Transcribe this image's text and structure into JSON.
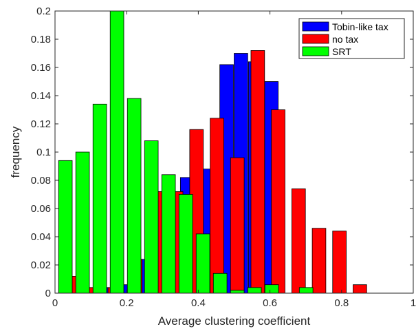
{
  "chart_data": {
    "type": "bar",
    "xlabel": "Average clustering coefficient",
    "ylabel": "frequency",
    "xlim": [
      0,
      1
    ],
    "ylim": [
      0,
      0.2
    ],
    "x_ticks": [
      "0",
      "0.2",
      "0.4",
      "0.6",
      "0.8",
      "1"
    ],
    "y_ticks": [
      "0",
      "0.02",
      "0.04",
      "0.06",
      "0.08",
      "0.1",
      "0.12",
      "0.14",
      "0.16",
      "0.18",
      "0.2"
    ],
    "grid": false,
    "legend_position": "top-right",
    "series": [
      {
        "name": "Tobin-like tax",
        "color": "#0000ff",
        "bins": [
          {
            "x": 0.11,
            "y": 0.004
          },
          {
            "x": 0.17,
            "y": 0.006
          },
          {
            "x": 0.23,
            "y": 0.024
          },
          {
            "x": 0.29,
            "y": 0.072
          },
          {
            "x": 0.35,
            "y": 0.082
          },
          {
            "x": 0.41,
            "y": 0.088
          },
          {
            "x": 0.46,
            "y": 0.162
          },
          {
            "x": 0.5,
            "y": 0.17
          },
          {
            "x": 0.54,
            "y": 0.164
          },
          {
            "x": 0.585,
            "y": 0.15
          }
        ]
      },
      {
        "name": "no tax",
        "color": "#ff0000",
        "bins": [
          {
            "x": 0.034,
            "y": 0.012
          },
          {
            "x": 0.091,
            "y": 0.004
          },
          {
            "x": 0.148,
            "y": 0.004
          },
          {
            "x": 0.205,
            "y": 0.024
          },
          {
            "x": 0.262,
            "y": 0.072
          },
          {
            "x": 0.319,
            "y": 0.072
          },
          {
            "x": 0.376,
            "y": 0.116
          },
          {
            "x": 0.433,
            "y": 0.124
          },
          {
            "x": 0.49,
            "y": 0.096
          },
          {
            "x": 0.547,
            "y": 0.172
          },
          {
            "x": 0.604,
            "y": 0.13
          },
          {
            "x": 0.661,
            "y": 0.074
          },
          {
            "x": 0.718,
            "y": 0.046
          },
          {
            "x": 0.775,
            "y": 0.044
          },
          {
            "x": 0.832,
            "y": 0.006
          }
        ]
      },
      {
        "name": "SRT",
        "color": "#00ff00",
        "bins": [
          {
            "x": 0.01,
            "y": 0.094
          },
          {
            "x": 0.058,
            "y": 0.1
          },
          {
            "x": 0.106,
            "y": 0.134
          },
          {
            "x": 0.154,
            "y": 0.2
          },
          {
            "x": 0.202,
            "y": 0.138
          },
          {
            "x": 0.25,
            "y": 0.108
          },
          {
            "x": 0.298,
            "y": 0.084
          },
          {
            "x": 0.346,
            "y": 0.07
          },
          {
            "x": 0.394,
            "y": 0.042
          },
          {
            "x": 0.442,
            "y": 0.014
          },
          {
            "x": 0.49,
            "y": 0.002
          },
          {
            "x": 0.538,
            "y": 0.004
          },
          {
            "x": 0.586,
            "y": 0.006
          },
          {
            "x": 0.634,
            "y": 0.0
          },
          {
            "x": 0.682,
            "y": 0.004
          }
        ]
      }
    ]
  }
}
